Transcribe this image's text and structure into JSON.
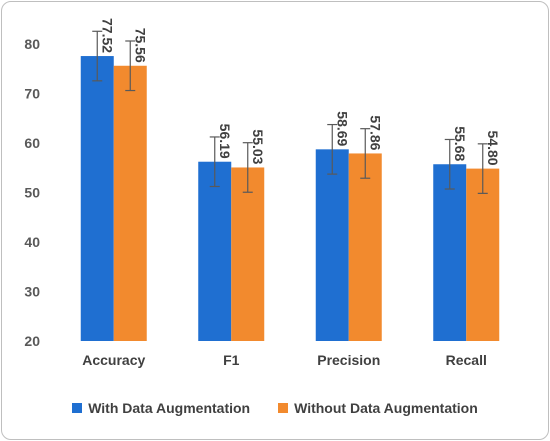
{
  "chart_data": {
    "type": "bar",
    "title": "",
    "xlabel": "",
    "ylabel": "",
    "ylim": [
      20,
      85
    ],
    "yticks": [
      20,
      30,
      40,
      50,
      60,
      70,
      80
    ],
    "grid": false,
    "legend_position": "bottom",
    "categories": [
      "Accuracy",
      "F1",
      "Precision",
      "Recall"
    ],
    "series": [
      {
        "name": "With Data Augmentation",
        "color": "#1f6fd1",
        "values": [
          77.52,
          56.19,
          58.69,
          55.68
        ],
        "labels": [
          "77.52",
          "56.19",
          "58.69",
          "55.68"
        ],
        "error": [
          5,
          5,
          5,
          5
        ]
      },
      {
        "name": "Without Data Augmentation",
        "color": "#f28a2e",
        "values": [
          75.56,
          55.03,
          57.86,
          54.8
        ],
        "labels": [
          "75.56",
          "55.03",
          "57.86",
          "54.80"
        ],
        "error": [
          5,
          5,
          5,
          5
        ]
      }
    ]
  }
}
